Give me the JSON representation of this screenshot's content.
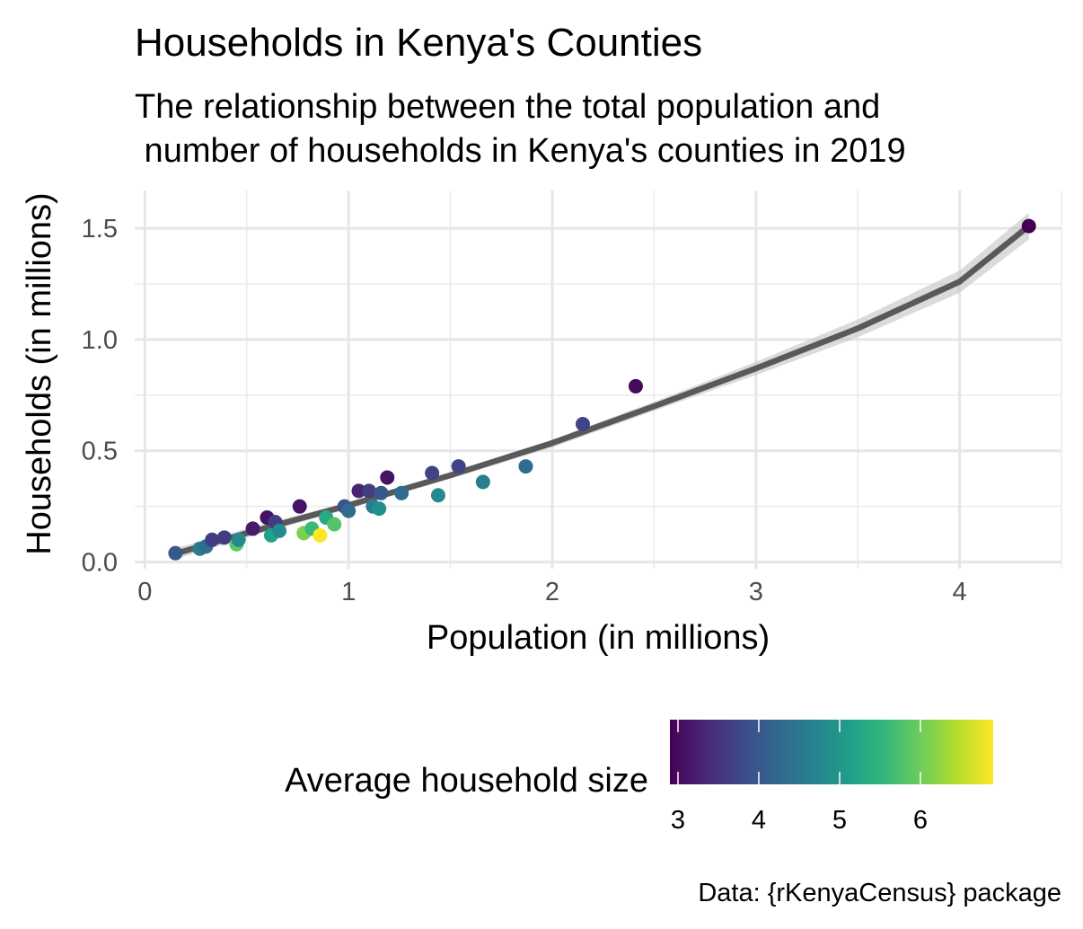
{
  "chart_data": {
    "type": "scatter",
    "title": "Households in Kenya's Counties",
    "subtitle_lines": [
      "The relationship between the total population and",
      " number of households in Kenya's counties in 2019"
    ],
    "xlabel": "Population (in millions)",
    "ylabel": "Households (in millions)",
    "xlim": [
      -0.05,
      4.5
    ],
    "ylim": [
      -0.03,
      1.67
    ],
    "x_ticks": [
      0,
      1,
      2,
      3,
      4
    ],
    "x_tick_labels": [
      "0",
      "1",
      "2",
      "3",
      "4"
    ],
    "y_ticks": [
      0.0,
      0.5,
      1.0,
      1.5
    ],
    "y_tick_labels": [
      "0.0",
      "0.5",
      "1.0",
      "1.5"
    ],
    "grid": true,
    "legend": {
      "title": "Average household size",
      "position": "bottom",
      "range": [
        2.9,
        6.9
      ],
      "ticks": [
        3,
        4,
        5,
        6
      ],
      "tick_labels": [
        "3",
        "4",
        "5",
        "6"
      ],
      "palette": [
        "#440154",
        "#482878",
        "#3E4A89",
        "#31688E",
        "#26828E",
        "#1F9E89",
        "#35B779",
        "#6DCD59",
        "#B4DE2C",
        "#FDE725"
      ]
    },
    "caption": "Data: {rKenyaCensus} package",
    "trend_line": {
      "x": [
        0.14,
        0.5,
        1.0,
        1.5,
        2.0,
        2.5,
        3.0,
        3.5,
        4.0,
        4.34
      ],
      "y": [
        0.035,
        0.13,
        0.255,
        0.39,
        0.535,
        0.7,
        0.87,
        1.05,
        1.26,
        1.51
      ],
      "band_upper": [
        0.06,
        0.15,
        0.27,
        0.4,
        0.55,
        0.72,
        0.9,
        1.09,
        1.31,
        1.57
      ],
      "band_lower": [
        0.01,
        0.11,
        0.24,
        0.375,
        0.515,
        0.68,
        0.84,
        1.01,
        1.21,
        1.45
      ],
      "color": "#595959",
      "band_color": "#bdbdbd"
    },
    "points": [
      {
        "x": 0.15,
        "y": 0.04,
        "hh": 4.0
      },
      {
        "x": 0.27,
        "y": 0.06,
        "hh": 4.6
      },
      {
        "x": 0.3,
        "y": 0.07,
        "hh": 4.3
      },
      {
        "x": 0.33,
        "y": 0.1,
        "hh": 3.6
      },
      {
        "x": 0.39,
        "y": 0.11,
        "hh": 3.6
      },
      {
        "x": 0.45,
        "y": 0.08,
        "hh": 5.9
      },
      {
        "x": 0.46,
        "y": 0.1,
        "hh": 4.8
      },
      {
        "x": 0.53,
        "y": 0.15,
        "hh": 3.2
      },
      {
        "x": 0.6,
        "y": 0.2,
        "hh": 3.1
      },
      {
        "x": 0.62,
        "y": 0.12,
        "hh": 5.2
      },
      {
        "x": 0.64,
        "y": 0.18,
        "hh": 3.6
      },
      {
        "x": 0.66,
        "y": 0.14,
        "hh": 4.8
      },
      {
        "x": 0.76,
        "y": 0.25,
        "hh": 3.1
      },
      {
        "x": 0.78,
        "y": 0.13,
        "hh": 6.1
      },
      {
        "x": 0.82,
        "y": 0.15,
        "hh": 5.6
      },
      {
        "x": 0.86,
        "y": 0.12,
        "hh": 6.9
      },
      {
        "x": 0.89,
        "y": 0.2,
        "hh": 5.3
      },
      {
        "x": 0.93,
        "y": 0.17,
        "hh": 5.8
      },
      {
        "x": 0.98,
        "y": 0.25,
        "hh": 3.9
      },
      {
        "x": 1.0,
        "y": 0.23,
        "hh": 4.3
      },
      {
        "x": 1.05,
        "y": 0.32,
        "hh": 3.3
      },
      {
        "x": 1.1,
        "y": 0.32,
        "hh": 3.6
      },
      {
        "x": 1.12,
        "y": 0.25,
        "hh": 4.6
      },
      {
        "x": 1.15,
        "y": 0.24,
        "hh": 4.9
      },
      {
        "x": 1.16,
        "y": 0.31,
        "hh": 4.0
      },
      {
        "x": 1.19,
        "y": 0.38,
        "hh": 3.1
      },
      {
        "x": 1.26,
        "y": 0.31,
        "hh": 4.3
      },
      {
        "x": 1.41,
        "y": 0.4,
        "hh": 3.7
      },
      {
        "x": 1.44,
        "y": 0.3,
        "hh": 4.8
      },
      {
        "x": 1.54,
        "y": 0.43,
        "hh": 3.7
      },
      {
        "x": 1.66,
        "y": 0.36,
        "hh": 4.6
      },
      {
        "x": 1.87,
        "y": 0.43,
        "hh": 4.3
      },
      {
        "x": 2.15,
        "y": 0.62,
        "hh": 3.7
      },
      {
        "x": 2.41,
        "y": 0.79,
        "hh": 3.0
      },
      {
        "x": 4.34,
        "y": 1.51,
        "hh": 2.9
      }
    ]
  }
}
